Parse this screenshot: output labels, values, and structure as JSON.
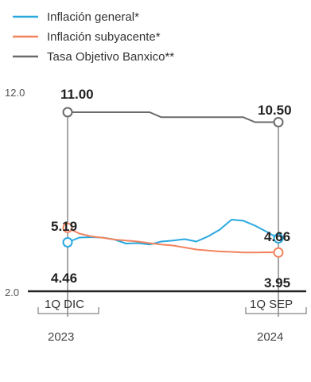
{
  "chart_data": {
    "type": "line",
    "ylim": [
      2.0,
      12.0
    ],
    "y_ticks": [
      "12.0",
      "2.0"
    ],
    "x_period_labels": [
      "1Q DIC",
      "1Q SEP"
    ],
    "x_year_labels": [
      "2023",
      "2024"
    ],
    "grid": false,
    "legend_position": "top-left",
    "series": [
      {
        "name": "Inflación general*",
        "color": "#29a8e0",
        "values": [
          4.46,
          4.7,
          4.72,
          4.7,
          4.6,
          4.4,
          4.42,
          4.35,
          4.5,
          4.55,
          4.62,
          4.5,
          4.76,
          5.1,
          5.6,
          5.55,
          5.3,
          4.99,
          4.66
        ],
        "start_label": "4.46",
        "end_label": "4.66"
      },
      {
        "name": "Inflación subyacente*",
        "color": "#f2835f",
        "values": [
          5.19,
          4.9,
          4.76,
          4.69,
          4.6,
          4.55,
          4.5,
          4.42,
          4.35,
          4.3,
          4.2,
          4.1,
          4.05,
          4.0,
          3.98,
          3.95,
          3.95,
          3.96,
          3.95
        ],
        "start_label": "5.19",
        "end_label": "3.95"
      },
      {
        "name": "Tasa Objetivo Banxico**",
        "color": "#6b6b6b",
        "values": [
          11.0,
          11.0,
          11.0,
          11.0,
          11.0,
          11.0,
          11.0,
          11.0,
          10.75,
          10.75,
          10.75,
          10.75,
          10.75,
          10.75,
          10.75,
          10.75,
          10.5,
          10.5,
          10.5
        ],
        "start_label": "11.00",
        "end_label": "10.50"
      }
    ]
  }
}
